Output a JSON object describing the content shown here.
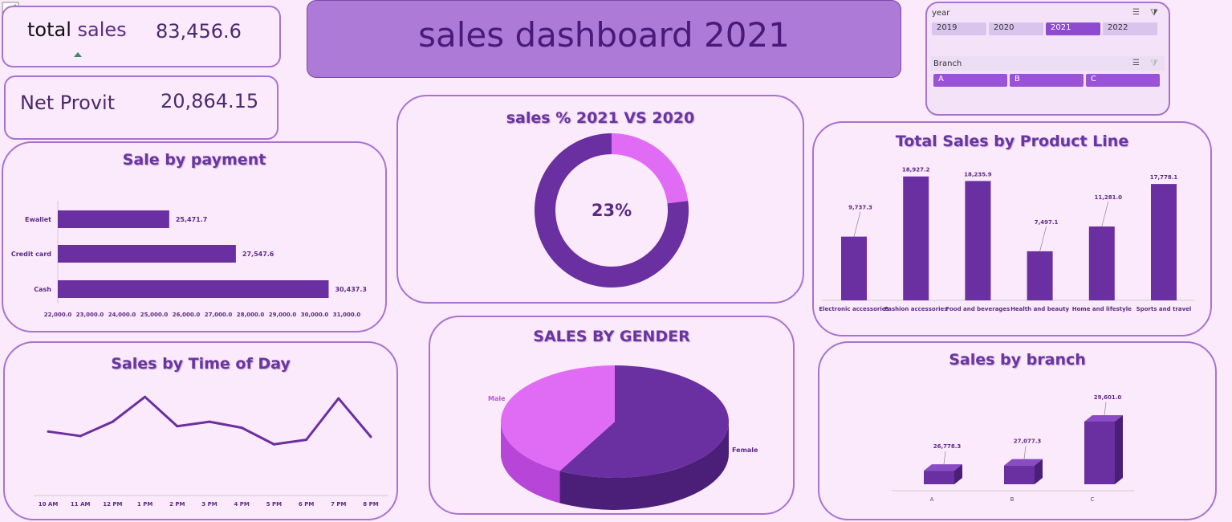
{
  "kpi": {
    "total_sales_label_1": "total",
    "total_sales_label_2": "sales",
    "total_sales_value": "83,456.6",
    "net_profit_label": "Net Provit",
    "net_profit_value": "20,864.15"
  },
  "header": {
    "title": "sales dashboard 2021"
  },
  "slicers": {
    "year": {
      "title": "year",
      "items": [
        "2019",
        "2020",
        "2021",
        "2022"
      ],
      "selected": "2021"
    },
    "branch": {
      "title": "Branch",
      "items": [
        "A",
        "B",
        "C"
      ]
    }
  },
  "colors": {
    "accent": "#6a2fa0",
    "light_accent": "#e06cf5",
    "background": "#fbeafb",
    "border": "#a872d0"
  },
  "icons": {
    "paint": "paintbrush-icon",
    "multi_select": "multi-select-icon",
    "clear_filter": "clear-filter-icon"
  },
  "chart_data": [
    {
      "type": "bar",
      "orientation": "horizontal",
      "title": "Sale by payment",
      "categories": [
        "Ewallet",
        "Credit card",
        "Cash"
      ],
      "values": [
        25471.7,
        27547.6,
        30437.3
      ],
      "value_labels": [
        "25,471.7",
        "27,547.6",
        "30,437.3"
      ],
      "xlim": [
        22000,
        31000
      ],
      "ticks": [
        "22,000.0",
        "23,000.0",
        "24,000.0",
        "25,000.0",
        "26,000.0",
        "27,000.0",
        "28,000.0",
        "29,000.0",
        "30,000.0",
        "31,000.0"
      ]
    },
    {
      "type": "pie",
      "subtype": "donut",
      "title": "sales % 2021 VS 2020",
      "value": 23,
      "center_label": "23%"
    },
    {
      "type": "bar",
      "title": "Total Sales by Product Line",
      "categories": [
        "Electronic accessories",
        "Fashion accessories",
        "Food and beverages",
        "Health and beauty",
        "Home and lifestyle",
        "Sports and travel"
      ],
      "values": [
        9737.3,
        18927.2,
        18235.9,
        7497.1,
        11281.0,
        17778.1
      ],
      "value_labels": [
        "9,737.3",
        "18,927.2",
        "18,235.9",
        "7,497.1",
        "11,281.0",
        "17,778.1"
      ]
    },
    {
      "type": "line",
      "title": "Sales by Time of Day",
      "categories": [
        "10 AM",
        "11 AM",
        "12 PM",
        "1 PM",
        "2 PM",
        "3 PM",
        "4 PM",
        "5 PM",
        "6 PM",
        "7 PM",
        "8 PM"
      ],
      "values": [
        8500,
        7900,
        9800,
        13100,
        9200,
        9800,
        9000,
        6800,
        7400,
        12900,
        7800
      ]
    },
    {
      "type": "pie",
      "title": "SALES BY GENDER",
      "categories": [
        "Male",
        "Female"
      ],
      "values": [
        42,
        58
      ]
    },
    {
      "type": "bar",
      "title": "Sales by branch",
      "categories": [
        "A",
        "B",
        "C"
      ],
      "values": [
        26778.3,
        27077.3,
        29601.0
      ],
      "value_labels": [
        "26,778.3",
        "27,077.3",
        "29,601.0"
      ]
    }
  ]
}
